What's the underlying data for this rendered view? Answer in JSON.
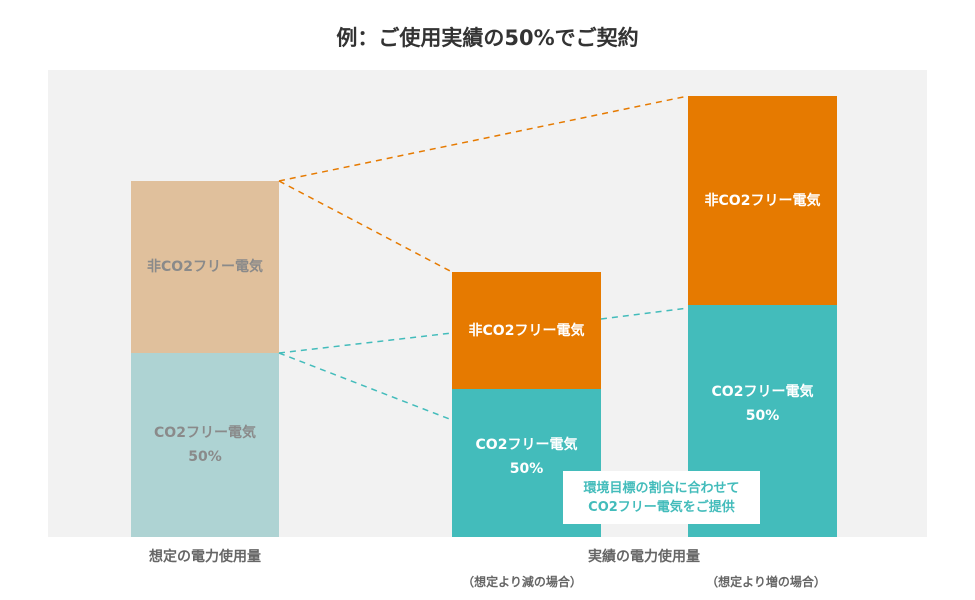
{
  "title": "例：ご使用実績の50%でご契約",
  "colors": {
    "panel": "#f2f2f2",
    "planned_non_co2": "#e0c09c",
    "planned_co2": "#aed3d3",
    "non_co2": "#e67a00",
    "co2_free": "#43bcbb"
  },
  "bars": [
    {
      "top_label": "非CO2フリー電気",
      "bottom_label": "CO2フリー電気",
      "bottom_pct": "50%"
    },
    {
      "top_label": "非CO2フリー電気",
      "bottom_label": "CO2フリー電気",
      "bottom_pct": "50%"
    },
    {
      "top_label": "非CO2フリー電気",
      "bottom_label": "CO2フリー電気",
      "bottom_pct": "50%"
    }
  ],
  "callout": {
    "line1": "環境目標の割合に合わせて",
    "line2": "CO2フリー電気をご提供"
  },
  "labels": {
    "planned": "想定の電力使用量",
    "actual": "実績の電力使用量",
    "decrease": "（想定より減の場合）",
    "increase": "（想定より増の場合）"
  }
}
